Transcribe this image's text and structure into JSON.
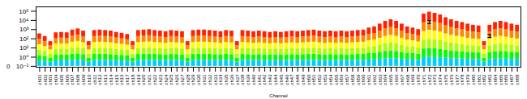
{
  "chart_data": {
    "type": "bar",
    "xlabel": "Channel",
    "log": "y",
    "colors": [
      "#00ccff",
      "#00ff00",
      "#aaff00",
      "#ffff00",
      "#ff8800",
      "#ff2200"
    ],
    "bar_base": 0.1,
    "ylim": [
      0.08,
      300000
    ],
    "yticks": [
      {
        "value": 0.1,
        "label": "10⁻¹"
      },
      {
        "value": 1,
        "label": "10⁰"
      },
      {
        "value": 10,
        "label": "10¹"
      },
      {
        "value": 100,
        "label": "10²"
      },
      {
        "value": 1000,
        "label": "10³"
      },
      {
        "value": 10000,
        "label": "10⁴"
      },
      {
        "value": 100000,
        "label": "10⁵"
      }
    ],
    "categories": [
      "ch01",
      "ch02",
      "ch03",
      "ch04",
      "ch05",
      "ch06",
      "ch07",
      "ch08",
      "ch09",
      "ch10",
      "ch11",
      "ch12",
      "ch13",
      "ch14",
      "ch15",
      "ch16",
      "ch17",
      "ch18",
      "ch19",
      "ch20",
      "ch21",
      "ch22",
      "ch23",
      "ch24",
      "ch25",
      "ch26",
      "ch27",
      "ch28",
      "ch29",
      "ch30",
      "ch31",
      "ch32",
      "ch33",
      "ch34",
      "ch35",
      "ch36",
      "ch37",
      "ch38",
      "ch39",
      "ch40",
      "ch41",
      "ch42",
      "ch43",
      "ch44",
      "ch45",
      "ch46",
      "ch47",
      "ch48",
      "ch49",
      "ch50",
      "ch51",
      "ch52",
      "ch53",
      "ch54",
      "ch55",
      "ch56",
      "ch57",
      "ch58",
      "ch59",
      "ch60",
      "ch61",
      "ch62",
      "ch63",
      "ch64",
      "ch65",
      "ch66",
      "ch67",
      "ch68",
      "ch69",
      "ch70",
      "ch71",
      "ch72",
      "ch73",
      "ch74",
      "ch75",
      "ch76",
      "ch77",
      "ch78",
      "ch79",
      "ch80",
      "ch81",
      "ch82",
      "ch83",
      "ch84",
      "ch85",
      "ch86",
      "ch87",
      "ch88"
    ],
    "values": [
      350,
      180,
      50,
      450,
      500,
      450,
      900,
      1200,
      700,
      50,
      800,
      900,
      800,
      700,
      500,
      400,
      300,
      50,
      800,
      900,
      1000,
      800,
      700,
      600,
      800,
      700,
      600,
      50,
      800,
      900,
      900,
      800,
      700,
      600,
      800,
      700,
      50,
      800,
      700,
      600,
      700,
      600,
      500,
      600,
      500,
      600,
      700,
      600,
      700,
      800,
      900,
      700,
      600,
      700,
      600,
      700,
      600,
      700,
      800,
      900,
      1500,
      2000,
      4000,
      8000,
      12000,
      8000,
      4000,
      2000,
      1500,
      1000,
      50000,
      80000,
      60000,
      40000,
      20000,
      12000,
      8000,
      6000,
      4000,
      3000,
      2500,
      50,
      3000,
      6000,
      8000,
      6000,
      4000,
      3000
    ],
    "error_bars": [
      {
        "x": "ch72",
        "y": 6309.573444801933,
        "yerr_minus": 1892.87203344058,
        "yerr_plus": 3154.7867224009665
      },
      {
        "x": "ch83",
        "y": 199.52623149688796,
        "yerr_minus": 59.85786944906639,
        "yerr_plus": 99.76311574844398
      }
    ],
    "annotations": [
      {
        "text": "0",
        "y": 0.09
      }
    ]
  }
}
